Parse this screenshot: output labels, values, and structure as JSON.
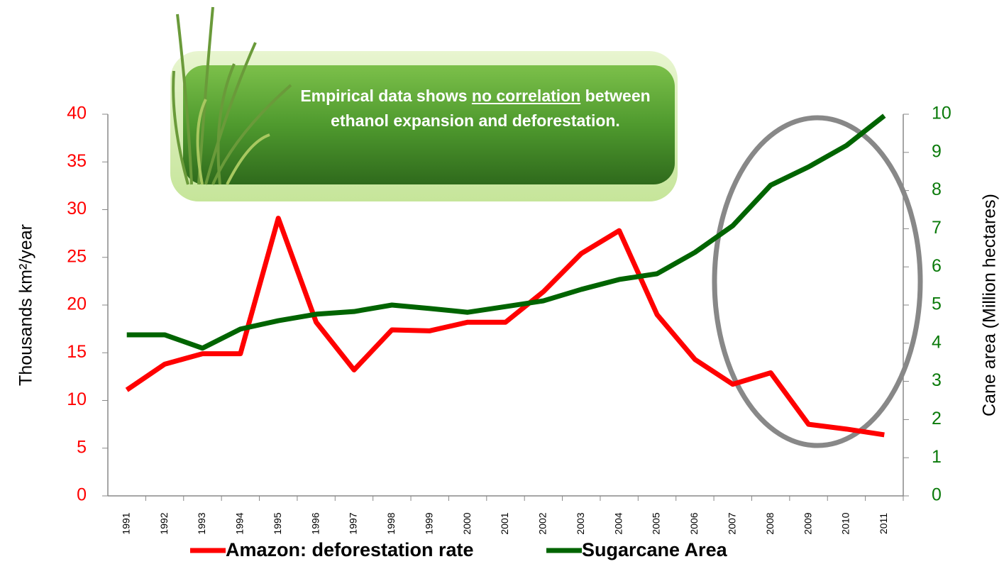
{
  "chart_data": {
    "type": "line",
    "annotation": {
      "before": "Empirical data shows ",
      "underlined": "no correlation",
      "after": " between ethanol expansion and deforestation."
    },
    "y_label": "Thousands km²/year",
    "y2_label": "Cane area (Million hectares)",
    "categories": [
      "1991",
      "1992",
      "1993",
      "1994",
      "1995",
      "1996",
      "1997",
      "1998",
      "1999",
      "2000",
      "2001",
      "2002",
      "2003",
      "2004",
      "2005",
      "2006",
      "2007",
      "2008",
      "2009",
      "2010",
      "2011"
    ],
    "series": [
      {
        "name": "Amazon: deforestation rate",
        "color": "#ff0000",
        "axis": "y",
        "values": [
          11.1,
          13.8,
          14.9,
          14.9,
          29.1,
          18.2,
          13.2,
          17.4,
          17.3,
          18.2,
          18.2,
          21.4,
          25.4,
          27.8,
          19.0,
          14.3,
          11.7,
          12.9,
          7.5,
          7.0,
          6.4
        ]
      },
      {
        "name": "Sugarcane Area",
        "color": "#006400",
        "axis": "y2",
        "values": [
          4.22,
          4.22,
          3.87,
          4.37,
          4.59,
          4.76,
          4.83,
          5.0,
          4.91,
          4.81,
          4.96,
          5.11,
          5.41,
          5.67,
          5.82,
          6.38,
          7.08,
          8.14,
          8.62,
          9.18,
          9.96
        ]
      }
    ],
    "ylim": [
      0,
      40
    ],
    "yticks": [
      0,
      5,
      10,
      15,
      20,
      25,
      30,
      35,
      40
    ],
    "ytick_color": "#ff0000",
    "y2lim": [
      0,
      10
    ],
    "y2ticks": [
      0,
      1,
      2,
      3,
      4,
      5,
      6,
      7,
      8,
      9,
      10
    ],
    "y2tick_color": "#0a7a0a",
    "grid": false
  }
}
